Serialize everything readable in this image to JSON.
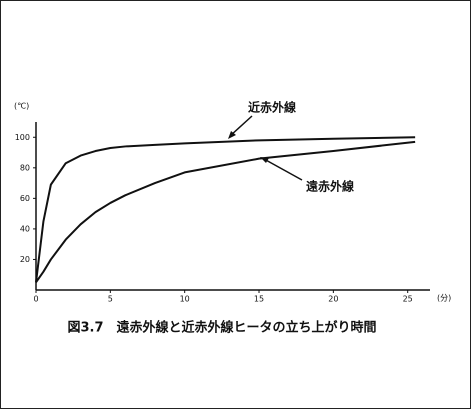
{
  "chart_data": {
    "type": "line",
    "y_unit": "(℃)",
    "x_unit": "(分)",
    "caption": "図3.7　遠赤外線と近赤外線ヒータの立ち上がり時間",
    "x": [
      0,
      0.5,
      1,
      2,
      3,
      4,
      5,
      6,
      8,
      10,
      15,
      20,
      25.5
    ],
    "series": [
      {
        "name": "近赤外線",
        "color": "#111111",
        "values": [
          5,
          45,
          69,
          83,
          88,
          91,
          93,
          94,
          95,
          96,
          98,
          99,
          100
        ]
      },
      {
        "name": "遠赤外線",
        "color": "#111111",
        "values": [
          5,
          12,
          20,
          33,
          43,
          51,
          57,
          62,
          70,
          77,
          86,
          91,
          97
        ]
      }
    ],
    "xlim": [
      0,
      26.5
    ],
    "ylim": [
      0,
      110
    ],
    "xticks": [
      0,
      5,
      10,
      15,
      20,
      25
    ],
    "yticks": [
      20,
      40,
      60,
      80,
      100
    ]
  }
}
